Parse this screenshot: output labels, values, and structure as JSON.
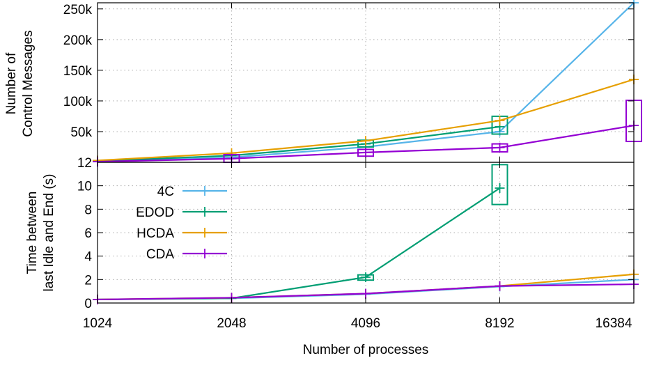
{
  "chart_data": [
    {
      "type": "line",
      "x": [
        1024,
        2048,
        4096,
        8192,
        16384
      ],
      "xscale": "log2",
      "ylabel_lines": [
        "Number of",
        "Control Messages"
      ],
      "ylim": [
        0,
        260000
      ],
      "yticks": [
        50000,
        100000,
        150000,
        200000,
        250000
      ],
      "ytick_labels": [
        "50k",
        "100k",
        "150k",
        "200k",
        "250k"
      ],
      "grid": true,
      "series": [
        {
          "name": "4C",
          "color": "#56b4e9",
          "values": [
            1000,
            8000,
            25000,
            50000,
            262000
          ]
        },
        {
          "name": "EDOD",
          "color": "#009e73",
          "values": [
            2000,
            11000,
            30000,
            58000,
            null
          ],
          "box_errors": [
            null,
            null,
            [
              25000,
              36000
            ],
            [
              46000,
              75000
            ],
            null
          ]
        },
        {
          "name": "HCDA",
          "color": "#e69f00",
          "values": [
            3000,
            15000,
            35000,
            68000,
            135000
          ]
        },
        {
          "name": "CDA",
          "color": "#9400d3",
          "values": [
            1000,
            6000,
            16000,
            24000,
            60000
          ],
          "box_errors": [
            null,
            6500,
            [
              10000,
              21000
            ],
            [
              17000,
              30000
            ],
            [
              34000,
              101000
            ]
          ]
        }
      ]
    },
    {
      "type": "line",
      "x": [
        1024,
        2048,
        4096,
        8192,
        16384
      ],
      "xscale": "log2",
      "xtick_labels": [
        "1024",
        "2048",
        "4096",
        "8192",
        "16384"
      ],
      "xlabel": "Number of processes",
      "ylabel_lines": [
        "Time between",
        "last Idle and End (s)"
      ],
      "ylim": [
        0,
        12
      ],
      "yticks": [
        0,
        2,
        4,
        6,
        8,
        10,
        12
      ],
      "ytick_labels": [
        "0",
        "2",
        "4",
        "6",
        "8",
        "10",
        "12"
      ],
      "grid": true,
      "legend_position": "top-left",
      "series": [
        {
          "name": "4C",
          "color": "#56b4e9",
          "values": [
            0.3,
            0.4,
            0.75,
            1.4,
            2.0
          ]
        },
        {
          "name": "EDOD",
          "color": "#009e73",
          "values": [
            0.3,
            0.4,
            2.2,
            9.8,
            null
          ],
          "box_errors": [
            null,
            null,
            [
              1.95,
              2.4
            ],
            [
              8.4,
              11.8
            ],
            null
          ]
        },
        {
          "name": "HCDA",
          "color": "#e69f00",
          "values": [
            0.3,
            0.45,
            0.8,
            1.45,
            2.45
          ]
        },
        {
          "name": "CDA",
          "color": "#9400d3",
          "values": [
            0.3,
            0.45,
            0.8,
            1.45,
            1.6
          ]
        }
      ]
    }
  ]
}
